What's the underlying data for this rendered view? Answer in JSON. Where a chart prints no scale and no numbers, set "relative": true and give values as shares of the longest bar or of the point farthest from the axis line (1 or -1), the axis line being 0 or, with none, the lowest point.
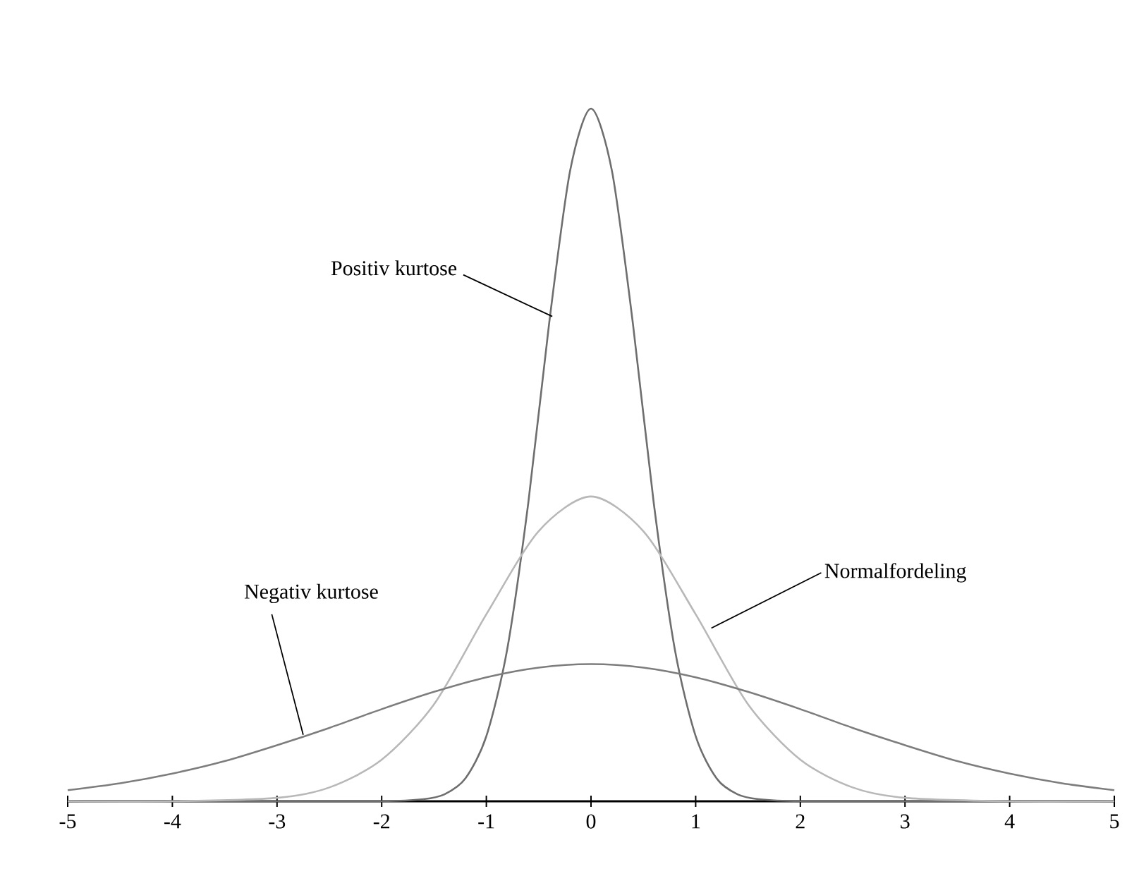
{
  "chart_data": {
    "type": "line",
    "relative": true,
    "xlim": [
      -5,
      5
    ],
    "xticks": [
      -5,
      -4,
      -3,
      -2,
      -1,
      0,
      1,
      2,
      3,
      4,
      5
    ],
    "grid": false,
    "marker": "none",
    "line_style": "solid",
    "annotations": [
      {
        "text": "Positiv kurtose",
        "x": -0.37,
        "y": 0.7
      },
      {
        "text": "Normalfordeling",
        "x": 1.15,
        "y": 0.25
      },
      {
        "text": "Negativ kurtose",
        "x": -2.75,
        "y": 0.096
      }
    ],
    "series": [
      {
        "color": "#6e6e6e",
        "x": [
          -5,
          -3,
          -2,
          -1.6,
          -1.4,
          -1.2,
          -1.0,
          -0.8,
          -0.6,
          -0.4,
          -0.2,
          0,
          0.2,
          0.4,
          0.6,
          0.8,
          1.0,
          1.2,
          1.4,
          1.6,
          2,
          3,
          5
        ],
        "values": [
          0,
          0,
          0,
          0.003,
          0.01,
          0.033,
          0.094,
          0.22,
          0.43,
          0.69,
          0.91,
          1,
          0.91,
          0.69,
          0.43,
          0.22,
          0.094,
          0.033,
          0.01,
          0.003,
          0,
          0,
          0
        ]
      },
      {
        "color": "#b8b8b8",
        "x": [
          -5,
          -4,
          -3,
          -2.5,
          -2,
          -1.5,
          -1,
          -0.5,
          0,
          0.5,
          1,
          1.5,
          2,
          2.5,
          3,
          4,
          5
        ],
        "values": [
          0,
          0,
          0.005,
          0.02,
          0.06,
          0.14,
          0.27,
          0.39,
          0.44,
          0.39,
          0.27,
          0.14,
          0.06,
          0.02,
          0.005,
          0,
          0
        ]
      },
      {
        "color": "#7d7d7d",
        "x": [
          -5,
          -4.5,
          -4,
          -3.5,
          -3,
          -2.5,
          -2,
          -1.5,
          -1,
          -0.5,
          0,
          0.5,
          1,
          1.5,
          2,
          2.5,
          3,
          3.5,
          4,
          4.5,
          5
        ],
        "values": [
          0.016,
          0.026,
          0.04,
          0.058,
          0.081,
          0.106,
          0.133,
          0.158,
          0.179,
          0.193,
          0.198,
          0.193,
          0.179,
          0.158,
          0.133,
          0.106,
          0.081,
          0.058,
          0.04,
          0.026,
          0.016
        ]
      }
    ]
  }
}
